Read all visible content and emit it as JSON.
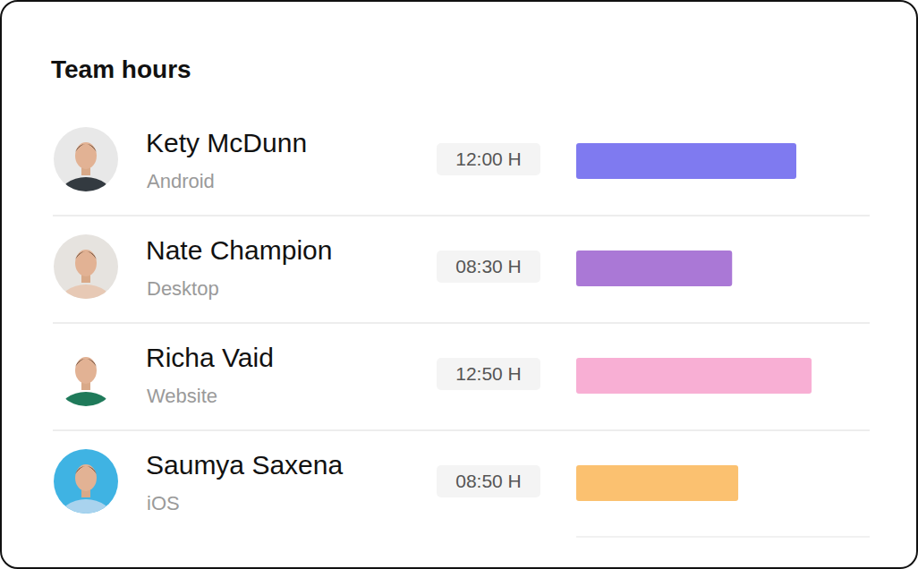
{
  "chart_data": {
    "type": "bar",
    "title": "Team hours",
    "orientation": "horizontal",
    "categories": [
      "Kety McDunn",
      "Nate Champion",
      "Richa Vaid",
      "Saumya Saxena"
    ],
    "platforms": [
      "Android",
      "Desktop",
      "Website",
      "iOS"
    ],
    "values": [
      12,
      8.5,
      12.833,
      8.833
    ],
    "value_labels": [
      "12:00 H",
      "08:30 H",
      "12:50 H",
      "08:50 H"
    ],
    "colors": [
      "#7f7af0",
      "#aa78d6",
      "#f8afd4",
      "#fbc170"
    ],
    "xlim": [
      0,
      16
    ],
    "xticks": [
      0,
      16
    ],
    "tick_labels": false
  }
}
